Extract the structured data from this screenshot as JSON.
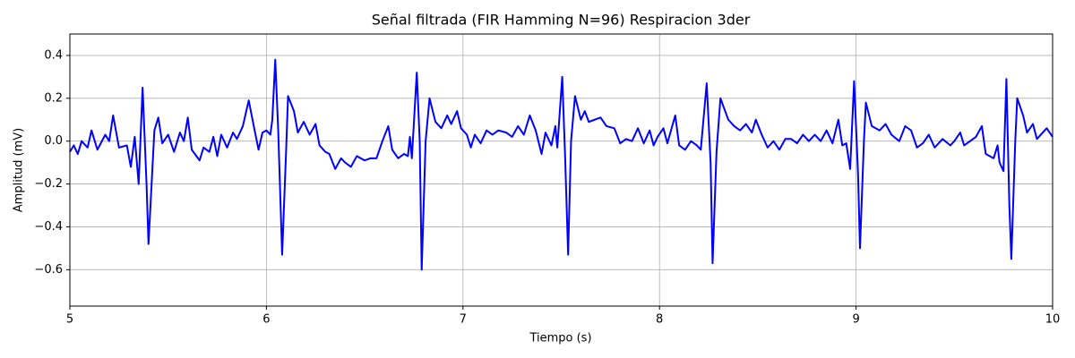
{
  "chart_data": {
    "type": "line",
    "title": "Señal filtrada (FIR Hamming N=96) Respiracion 3der",
    "xlabel": "Tiempo (s)",
    "ylabel": "Amplitud (mV)",
    "xlim": [
      5,
      10
    ],
    "ylim": [
      -0.77,
      0.5
    ],
    "xticks": [
      5,
      6,
      7,
      8,
      9,
      10
    ],
    "yticks": [
      {
        "value": -0.6,
        "label": "−0.6"
      },
      {
        "value": -0.4,
        "label": "−0.4"
      },
      {
        "value": -0.2,
        "label": "−0.2"
      },
      {
        "value": 0,
        "label": "0.0"
      },
      0.2,
      0.4
    ],
    "grid": true,
    "x": [
      5.0,
      5.02,
      5.04,
      5.06,
      5.09,
      5.11,
      5.14,
      5.18,
      5.2,
      5.22,
      5.25,
      5.29,
      5.31,
      5.33,
      5.35,
      5.37,
      5.39,
      5.4,
      5.43,
      5.45,
      5.47,
      5.5,
      5.53,
      5.56,
      5.58,
      5.6,
      5.62,
      5.66,
      5.68,
      5.71,
      5.73,
      5.75,
      5.77,
      5.8,
      5.83,
      5.85,
      5.88,
      5.91,
      5.94,
      5.96,
      5.98,
      6.0,
      6.02,
      6.03,
      6.045,
      6.06,
      6.08,
      6.1,
      6.11,
      6.14,
      6.16,
      6.19,
      6.22,
      6.25,
      6.27,
      6.3,
      6.32,
      6.35,
      6.38,
      6.4,
      6.43,
      6.46,
      6.5,
      6.53,
      6.56,
      6.59,
      6.62,
      6.64,
      6.67,
      6.7,
      6.72,
      6.73,
      6.74,
      6.765,
      6.78,
      6.79,
      6.81,
      6.83,
      6.86,
      6.89,
      6.92,
      6.94,
      6.97,
      6.99,
      7.02,
      7.04,
      7.06,
      7.09,
      7.12,
      7.15,
      7.18,
      7.22,
      7.25,
      7.28,
      7.31,
      7.34,
      7.37,
      7.4,
      7.42,
      7.45,
      7.47,
      7.48,
      7.505,
      7.52,
      7.535,
      7.55,
      7.57,
      7.6,
      7.62,
      7.64,
      7.67,
      7.7,
      7.73,
      7.77,
      7.8,
      7.83,
      7.86,
      7.89,
      7.92,
      7.95,
      7.97,
      7.99,
      8.02,
      8.04,
      8.08,
      8.1,
      8.13,
      8.16,
      8.19,
      8.21,
      8.24,
      8.26,
      8.27,
      8.29,
      8.31,
      8.35,
      8.38,
      8.41,
      8.44,
      8.47,
      8.49,
      8.52,
      8.55,
      8.58,
      8.61,
      8.64,
      8.67,
      8.7,
      8.73,
      8.76,
      8.79,
      8.82,
      8.85,
      8.88,
      8.91,
      8.93,
      8.95,
      8.97,
      8.99,
      9.01,
      9.02,
      9.04,
      9.05,
      9.08,
      9.12,
      9.15,
      9.18,
      9.22,
      9.25,
      9.28,
      9.31,
      9.34,
      9.37,
      9.4,
      9.44,
      9.48,
      9.5,
      9.53,
      9.55,
      9.58,
      9.61,
      9.64,
      9.66,
      9.7,
      9.72,
      9.73,
      9.75,
      9.765,
      9.78,
      9.79,
      9.81,
      9.82,
      9.85,
      9.87,
      9.9,
      9.92,
      9.95,
      9.97,
      10.0
    ],
    "series": [
      {
        "color": "#0000ff",
        "values": [
          -0.05,
          -0.02,
          -0.06,
          0.0,
          -0.03,
          0.05,
          -0.04,
          0.03,
          0.0,
          0.12,
          -0.03,
          -0.02,
          -0.12,
          0.02,
          -0.2,
          0.25,
          -0.2,
          -0.48,
          0.05,
          0.11,
          -0.01,
          0.03,
          -0.05,
          0.04,
          0.0,
          0.11,
          -0.04,
          -0.09,
          -0.03,
          -0.05,
          0.02,
          -0.07,
          0.03,
          -0.03,
          0.04,
          0.01,
          0.07,
          0.19,
          0.05,
          -0.04,
          0.04,
          0.05,
          0.03,
          0.1,
          0.38,
          0.05,
          -0.53,
          -0.05,
          0.21,
          0.14,
          0.04,
          0.09,
          0.03,
          0.08,
          -0.02,
          -0.05,
          -0.06,
          -0.13,
          -0.08,
          -0.1,
          -0.12,
          -0.07,
          -0.09,
          -0.08,
          -0.08,
          0.0,
          0.07,
          -0.04,
          -0.08,
          -0.06,
          -0.07,
          0.02,
          -0.08,
          0.32,
          0.0,
          -0.6,
          0.0,
          0.2,
          0.09,
          0.06,
          0.12,
          0.08,
          0.14,
          0.06,
          0.03,
          -0.03,
          0.03,
          -0.01,
          0.05,
          0.03,
          0.05,
          0.04,
          0.02,
          0.07,
          0.03,
          0.12,
          0.05,
          -0.06,
          0.04,
          -0.02,
          0.07,
          -0.03,
          0.3,
          -0.08,
          -0.53,
          0.0,
          0.21,
          0.1,
          0.14,
          0.09,
          0.1,
          0.11,
          0.07,
          0.06,
          -0.01,
          0.01,
          0.0,
          0.06,
          -0.01,
          0.05,
          -0.02,
          0.02,
          0.06,
          -0.01,
          0.12,
          -0.02,
          -0.04,
          0.0,
          -0.02,
          -0.04,
          0.27,
          -0.1,
          -0.57,
          -0.05,
          0.2,
          0.1,
          0.07,
          0.05,
          0.08,
          0.04,
          0.1,
          0.03,
          -0.03,
          0.0,
          -0.04,
          0.01,
          0.01,
          -0.01,
          0.03,
          0.0,
          0.03,
          0.0,
          0.05,
          -0.01,
          0.1,
          -0.02,
          -0.01,
          -0.13,
          0.28,
          -0.15,
          -0.5,
          0.0,
          0.18,
          0.07,
          0.05,
          0.08,
          0.03,
          0.0,
          0.07,
          0.05,
          -0.03,
          -0.01,
          0.03,
          -0.03,
          0.01,
          -0.02,
          0.0,
          0.04,
          -0.02,
          0.0,
          0.02,
          0.07,
          -0.06,
          -0.08,
          -0.02,
          -0.1,
          -0.14,
          0.29,
          -0.3,
          -0.55,
          0.0,
          0.2,
          0.12,
          0.04,
          0.08,
          0.01,
          0.04,
          0.06,
          0.02
        ]
      }
    ]
  }
}
